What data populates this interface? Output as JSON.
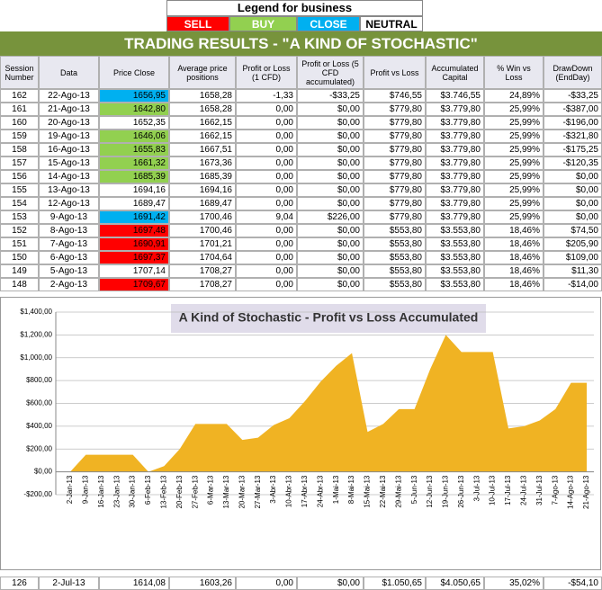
{
  "legend": {
    "title": "Legend for business",
    "items": [
      {
        "label": "SELL",
        "color": "#ff0000"
      },
      {
        "label": "BUY",
        "color": "#92d050"
      },
      {
        "label": "CLOSE",
        "color": "#00b0f0"
      },
      {
        "label": "NEUTRAL",
        "color": "#ffffff"
      }
    ]
  },
  "table": {
    "title": "TRADING RESULTS - \"A KIND OF STOCHASTIC\"",
    "headers": [
      "Session Number",
      "Data",
      "Price Close",
      "Average price positions",
      "Profit or Loss (1 CFD)",
      "Profit or Loss (5 CFD accumulated)",
      "Profit vs Loss",
      "Accumulated Capital",
      "% Win vs Loss",
      "DrawDown (EndDay)"
    ],
    "rows": [
      [
        "162",
        "22-Ago-13",
        "1656,95",
        "1658,28",
        "-1,33",
        "-$33,25",
        "$746,55",
        "$3.746,55",
        "24,89%",
        "-$33,25"
      ],
      [
        "161",
        "21-Ago-13",
        "1642,80",
        "1658,28",
        "0,00",
        "$0,00",
        "$779,80",
        "$3.779,80",
        "25,99%",
        "-$387,00"
      ],
      [
        "160",
        "20-Ago-13",
        "1652,35",
        "1662,15",
        "0,00",
        "$0,00",
        "$779,80",
        "$3.779,80",
        "25,99%",
        "-$196,00"
      ],
      [
        "159",
        "19-Ago-13",
        "1646,06",
        "1662,15",
        "0,00",
        "$0,00",
        "$779,80",
        "$3.779,80",
        "25,99%",
        "-$321,80"
      ],
      [
        "158",
        "16-Ago-13",
        "1655,83",
        "1667,51",
        "0,00",
        "$0,00",
        "$779,80",
        "$3.779,80",
        "25,99%",
        "-$175,25"
      ],
      [
        "157",
        "15-Ago-13",
        "1661,32",
        "1673,36",
        "0,00",
        "$0,00",
        "$779,80",
        "$3.779,80",
        "25,99%",
        "-$120,35"
      ],
      [
        "156",
        "14-Ago-13",
        "1685,39",
        "1685,39",
        "0,00",
        "$0,00",
        "$779,80",
        "$3.779,80",
        "25,99%",
        "$0,00"
      ],
      [
        "155",
        "13-Ago-13",
        "1694,16",
        "1694,16",
        "0,00",
        "$0,00",
        "$779,80",
        "$3.779,80",
        "25,99%",
        "$0,00"
      ],
      [
        "154",
        "12-Ago-13",
        "1689,47",
        "1689,47",
        "0,00",
        "$0,00",
        "$779,80",
        "$3.779,80",
        "25,99%",
        "$0,00"
      ],
      [
        "153",
        "9-Ago-13",
        "1691,42",
        "1700,46",
        "9,04",
        "$226,00",
        "$779,80",
        "$3.779,80",
        "25,99%",
        "$0,00"
      ],
      [
        "152",
        "8-Ago-13",
        "1697,48",
        "1700,46",
        "0,00",
        "$0,00",
        "$553,80",
        "$3.553,80",
        "18,46%",
        "$74,50"
      ],
      [
        "151",
        "7-Ago-13",
        "1690,91",
        "1701,21",
        "0,00",
        "$0,00",
        "$553,80",
        "$3.553,80",
        "18,46%",
        "$205,90"
      ],
      [
        "150",
        "6-Ago-13",
        "1697,37",
        "1704,64",
        "0,00",
        "$0,00",
        "$553,80",
        "$3.553,80",
        "18,46%",
        "$109,00"
      ],
      [
        "149",
        "5-Ago-13",
        "1707,14",
        "1708,27",
        "0,00",
        "$0,00",
        "$553,80",
        "$3.553,80",
        "18,46%",
        "$11,30"
      ],
      [
        "148",
        "2-Ago-13",
        "1709,67",
        "1708,27",
        "0,00",
        "$0,00",
        "$553,80",
        "$3.553,80",
        "18,46%",
        "-$14,00"
      ]
    ],
    "highlights": [
      "#00b0f0",
      "#92d050",
      null,
      "#92d050",
      "#92d050",
      "#92d050",
      "#92d050",
      null,
      null,
      "#00b0f0",
      "#ff0000",
      "#ff0000",
      "#ff0000",
      null,
      "#ff0000"
    ],
    "footer_row": [
      "126",
      "2-Jul-13",
      "1614,08",
      "1603,26",
      "0,00",
      "$0,00",
      "$1.050,65",
      "$4.050,65",
      "35,02%",
      "-$54,10"
    ]
  },
  "chart_data": {
    "type": "area",
    "title": "A Kind of Stochastic - Profit vs Loss Accumulated",
    "color": "#f0b323",
    "grid": true,
    "categories": [
      "2-Jan-13",
      "9-Jan-13",
      "16-Jan-13",
      "23-Jan-13",
      "30-Jan-13",
      "6-Feb-13",
      "13-Feb-13",
      "20-Feb-13",
      "27-Feb-13",
      "6-Mar-13",
      "13-Mar-13",
      "20-Mar-13",
      "27-Mar-13",
      "3-Abr-13",
      "10-Abr-13",
      "17-Abr-13",
      "24-Abr-13",
      "1-Mai-13",
      "8-Mai-13",
      "15-Mai-13",
      "22-Mai-13",
      "29-Mai-13",
      "5-Jun-13",
      "12-Jun-13",
      "19-Jun-13",
      "26-Jun-13",
      "3-Jul-13",
      "10-Jul-13",
      "17-Jul-13",
      "24-Jul-13",
      "31-Jul-13",
      "7-Ago-13",
      "14-Ago-13",
      "21-Ago-13"
    ],
    "values": [
      0,
      150,
      150,
      150,
      150,
      0,
      50,
      200,
      420,
      420,
      420,
      280,
      300,
      410,
      470,
      620,
      790,
      930,
      1040,
      350,
      420,
      550,
      550,
      900,
      1200,
      1050,
      1050,
      1050,
      380,
      400,
      450,
      550,
      780,
      780
    ],
    "ylim": [
      -200,
      1400
    ],
    "yticks": [
      {
        "value": -200,
        "label": "-$200,00"
      },
      {
        "value": 0,
        "label": "$0,00"
      },
      {
        "value": 200,
        "label": "$200,00"
      },
      {
        "value": 400,
        "label": "$400,00"
      },
      {
        "value": 600,
        "label": "$600,00"
      },
      {
        "value": 800,
        "label": "$800,00"
      },
      {
        "value": 1000,
        "label": "$1,000,00"
      },
      {
        "value": 1200,
        "label": "$1,200,00"
      },
      {
        "value": 1400,
        "label": "$1,400,00"
      }
    ]
  }
}
